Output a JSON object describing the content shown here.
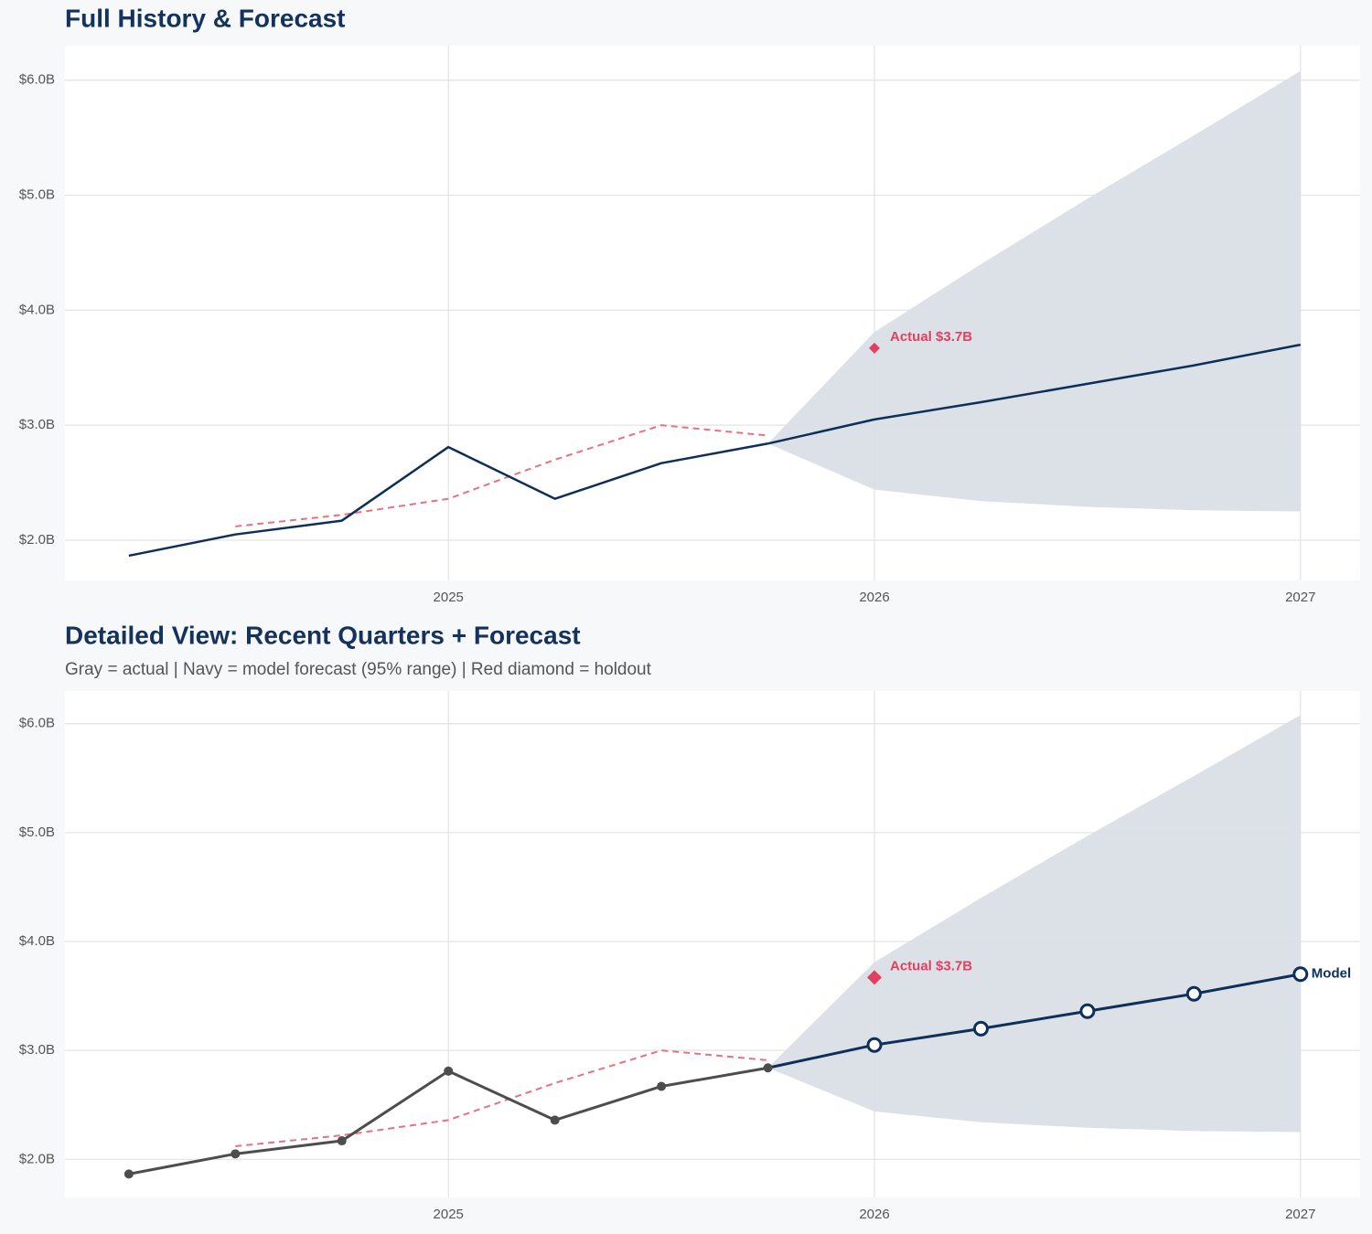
{
  "chart_data": [
    {
      "type": "line",
      "title": "Full History & Forecast",
      "x": [
        2024.25,
        2024.5,
        2024.75,
        2025,
        2025.25,
        2025.5,
        2025.75,
        2026,
        2026.25,
        2026.5,
        2026.75,
        2027
      ],
      "xlim": [
        2024.1,
        2027.14
      ],
      "xticks": [
        2025,
        2026,
        2027
      ],
      "ylim": [
        1.65,
        6.3
      ],
      "yticks": [
        {
          "value": 2,
          "label": "$2.0B"
        },
        {
          "value": 3,
          "label": "$3.0B"
        },
        {
          "value": 4,
          "label": "$4.0B"
        },
        {
          "value": 5,
          "label": "$5.0B"
        },
        {
          "value": 6,
          "label": "$6.0B"
        }
      ],
      "grid": true,
      "band": {
        "color": "#dadfe6",
        "upper": [
          null,
          null,
          null,
          null,
          null,
          null,
          2.84,
          3.81,
          4.4,
          4.97,
          5.52,
          6.08
        ],
        "lower": [
          null,
          null,
          null,
          null,
          null,
          null,
          2.84,
          2.44,
          2.34,
          2.29,
          2.26,
          2.25
        ]
      },
      "series": [
        {
          "color": "#e8717f",
          "style": "dashed",
          "values": [
            null,
            2.12,
            2.22,
            2.36,
            2.7,
            3.0,
            2.91,
            null,
            null,
            null,
            null,
            null
          ]
        },
        {
          "color": "#0d2f5a",
          "style": "solid",
          "values": [
            1.865,
            2.05,
            2.17,
            2.81,
            2.36,
            2.67,
            2.84,
            null,
            null,
            null,
            null,
            null
          ]
        },
        {
          "color": "#0d2f5a",
          "style": "solid",
          "values": [
            null,
            null,
            null,
            null,
            null,
            null,
            2.84,
            3.05,
            3.2,
            3.36,
            3.52,
            3.7
          ]
        }
      ],
      "holdout": {
        "x": 2026,
        "value": 3.67,
        "value_label": "Actual $3.7B",
        "color": "#e3405f"
      }
    },
    {
      "type": "line",
      "title": "Detailed View: Recent Quarters + Forecast",
      "subtitle": "Gray = actual  |  Navy = model forecast (95% range)  |  Red diamond = holdout",
      "x": [
        2024.25,
        2024.5,
        2024.75,
        2025,
        2025.25,
        2025.5,
        2025.75,
        2026,
        2026.25,
        2026.5,
        2026.75,
        2027
      ],
      "xlim": [
        2024.1,
        2027.14
      ],
      "xticks": [
        2025,
        2026,
        2027
      ],
      "ylim": [
        1.65,
        6.3
      ],
      "yticks": [
        {
          "value": 2,
          "label": "$2.0B"
        },
        {
          "value": 3,
          "label": "$3.0B"
        },
        {
          "value": 4,
          "label": "$4.0B"
        },
        {
          "value": 5,
          "label": "$5.0B"
        },
        {
          "value": 6,
          "label": "$6.0B"
        }
      ],
      "grid": true,
      "band": {
        "color": "#dadfe6",
        "upper": [
          null,
          null,
          null,
          null,
          null,
          null,
          2.84,
          3.81,
          4.4,
          4.97,
          5.52,
          6.08
        ],
        "lower": [
          null,
          null,
          null,
          null,
          null,
          null,
          2.84,
          2.44,
          2.34,
          2.29,
          2.26,
          2.25
        ]
      },
      "series": [
        {
          "color": "#e8717f",
          "style": "dashed",
          "values": [
            null,
            2.12,
            2.22,
            2.36,
            2.7,
            3.0,
            2.91,
            null,
            null,
            null,
            null,
            null
          ]
        },
        {
          "color": "#4d4d4d",
          "style": "solid",
          "markers": "filled",
          "values": [
            1.865,
            2.05,
            2.17,
            2.81,
            2.36,
            2.67,
            2.84,
            null,
            null,
            null,
            null,
            null
          ]
        },
        {
          "name": "Model",
          "color": "#0d2f5a",
          "style": "solid",
          "markers": "hollow",
          "values": [
            null,
            null,
            null,
            null,
            null,
            null,
            2.84,
            3.05,
            3.2,
            3.36,
            3.52,
            3.7
          ]
        }
      ],
      "holdout": {
        "x": 2026,
        "value": 3.67,
        "value_label": "Actual $3.7B",
        "color": "#e3405f"
      }
    }
  ]
}
